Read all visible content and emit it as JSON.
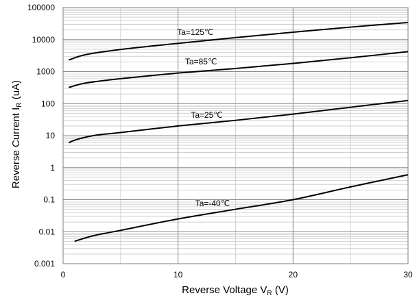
{
  "chart_data": {
    "type": "line",
    "xlabel": "Reverse Voltage  V",
    "xlabel_sub": "R",
    "xlabel_unit": " (V)",
    "ylabel": "Reverse Current  I",
    "ylabel_sub": "R",
    "ylabel_unit": " (uA)",
    "xlim": [
      0,
      30
    ],
    "ylim": [
      0.001,
      100000
    ],
    "y_scale": "log",
    "x_ticks": [
      0,
      10,
      20,
      30
    ],
    "y_ticks": [
      0.001,
      0.01,
      0.1,
      1,
      10,
      100,
      1000,
      10000,
      100000
    ],
    "y_tick_labels": [
      "0.001",
      "0.01",
      "0.1",
      "1",
      "10",
      "100",
      "1000",
      "10000",
      "100000"
    ],
    "grid": true,
    "line_color": "#000000",
    "series": [
      {
        "name": "Ta=125℃",
        "x": [
          0.5,
          2,
          5,
          10,
          15,
          20,
          25,
          30
        ],
        "y": [
          2300,
          3400,
          4900,
          7600,
          11500,
          17000,
          24500,
          34000
        ]
      },
      {
        "name": "Ta=85℃",
        "x": [
          0.5,
          2,
          5,
          10,
          15,
          20,
          25,
          30
        ],
        "y": [
          320,
          440,
          600,
          900,
          1250,
          1800,
          2700,
          4200
        ]
      },
      {
        "name": "Ta=25℃",
        "x": [
          0.5,
          1,
          2,
          3,
          5,
          10,
          15,
          20,
          25,
          30
        ],
        "y": [
          6,
          7.2,
          9,
          10.5,
          12.5,
          20,
          30,
          47,
          77,
          125
        ]
      },
      {
        "name": "Ta=-40℃",
        "x": [
          1,
          2,
          3,
          5,
          10,
          15,
          20,
          25,
          30
        ],
        "y": [
          0.005,
          0.0065,
          0.008,
          0.011,
          0.025,
          0.05,
          0.1,
          0.25,
          0.6
        ]
      }
    ]
  }
}
